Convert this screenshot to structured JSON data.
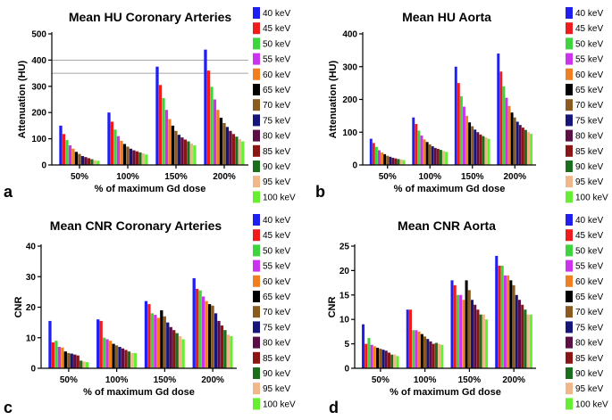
{
  "legend_labels": [
    "40 keV",
    "45 keV",
    "50 keV",
    "55 keV",
    "60 keV",
    "65 keV",
    "70 keV",
    "75 keV",
    "80 keV",
    "85 keV",
    "90 keV",
    "95 keV",
    "100 keV"
  ],
  "colors": [
    "#1f1ff0",
    "#ee1c1c",
    "#3ed43e",
    "#cc33ee",
    "#f07f22",
    "#000000",
    "#8b5a1e",
    "#15157a",
    "#5c0e46",
    "#8b1414",
    "#1b6e1b",
    "#f0b88a",
    "#66ee33"
  ],
  "chart_data": [
    {
      "type": "bar",
      "panel": "a",
      "title": "Mean HU Coronary Arteries",
      "xlabel": "% of maximum Gd dose",
      "ylabel": "Attenuation (HU)",
      "ylim": [
        0,
        500
      ],
      "yticks": [
        0,
        100,
        200,
        300,
        400,
        500
      ],
      "reference_lines": [
        400,
        350
      ],
      "categories": [
        "50%",
        "100%",
        "150%",
        "200%"
      ],
      "values": [
        [
          150,
          118,
          95,
          75,
          62,
          50,
          42,
          34,
          30,
          26,
          22,
          18,
          16
        ],
        [
          200,
          165,
          135,
          110,
          92,
          80,
          70,
          62,
          56,
          52,
          48,
          44,
          40
        ],
        [
          375,
          305,
          255,
          210,
          175,
          150,
          130,
          115,
          105,
          97,
          90,
          82,
          75
        ],
        [
          440,
          360,
          298,
          250,
          210,
          180,
          160,
          145,
          130,
          118,
          108,
          98,
          90
        ]
      ]
    },
    {
      "type": "bar",
      "panel": "b",
      "title": "Mean HU Aorta",
      "xlabel": "% of maximum Gd dose",
      "ylabel": "Attenuation (HU)",
      "ylim": [
        0,
        400
      ],
      "yticks": [
        0,
        100,
        200,
        300,
        400
      ],
      "categories": [
        "50%",
        "100%",
        "150%",
        "200%"
      ],
      "values": [
        [
          80,
          67,
          55,
          45,
          38,
          33,
          28,
          25,
          22,
          20,
          18,
          17,
          15
        ],
        [
          145,
          125,
          105,
          90,
          78,
          70,
          63,
          57,
          52,
          49,
          46,
          43,
          40
        ],
        [
          300,
          250,
          210,
          178,
          150,
          130,
          118,
          108,
          100,
          93,
          88,
          84,
          80
        ],
        [
          340,
          285,
          240,
          205,
          180,
          160,
          145,
          132,
          122,
          114,
          107,
          100,
          95
        ]
      ]
    },
    {
      "type": "bar",
      "panel": "c",
      "title": "Mean CNR Coronary Arteries",
      "xlabel": "% of maximum Gd dose",
      "ylabel": "CNR",
      "ylim": [
        0,
        40
      ],
      "yticks": [
        0,
        10,
        20,
        30,
        40
      ],
      "categories": [
        "50%",
        "100%",
        "150%",
        "200%"
      ],
      "values": [
        [
          15.5,
          8.5,
          9.0,
          7.0,
          6.8,
          5.5,
          5.0,
          4.8,
          4.5,
          4.2,
          2.5,
          2.2,
          2.0
        ],
        [
          16.0,
          15.5,
          10.0,
          9.5,
          9.0,
          8.0,
          7.5,
          7.0,
          6.5,
          6.0,
          5.5,
          5.0,
          5.0
        ],
        [
          22.0,
          21.0,
          18.0,
          17.5,
          16.5,
          19.0,
          17.0,
          15.0,
          13.5,
          12.5,
          11.5,
          10.5,
          9.5
        ],
        [
          29.5,
          26.0,
          25.5,
          23.5,
          22.0,
          21.0,
          20.5,
          18.0,
          15.5,
          14.0,
          12.5,
          11.0,
          10.5
        ]
      ]
    },
    {
      "type": "bar",
      "panel": "d",
      "title": "Mean CNR Aorta",
      "xlabel": "% of maximum Gd dose",
      "ylabel": "CNR",
      "ylim": [
        0,
        25
      ],
      "yticks": [
        0,
        5,
        10,
        15,
        20,
        25
      ],
      "categories": [
        "50%",
        "100%",
        "150%",
        "200%"
      ],
      "values": [
        [
          9.0,
          5.0,
          6.2,
          4.8,
          4.5,
          4.2,
          4.0,
          3.8,
          3.6,
          3.2,
          2.8,
          2.8,
          2.5
        ],
        [
          12.0,
          12.0,
          7.8,
          7.8,
          7.5,
          7.0,
          6.5,
          6.0,
          5.5,
          5.0,
          5.2,
          5.0,
          4.8
        ],
        [
          18.0,
          17.0,
          15.0,
          15.0,
          14.0,
          18.0,
          16.0,
          14.0,
          13.0,
          12.0,
          11.0,
          11.0,
          10.0
        ],
        [
          23.0,
          21.0,
          21.0,
          19.0,
          19.0,
          18.0,
          17.0,
          15.0,
          14.0,
          13.0,
          12.0,
          11.0,
          11.0
        ]
      ]
    }
  ]
}
